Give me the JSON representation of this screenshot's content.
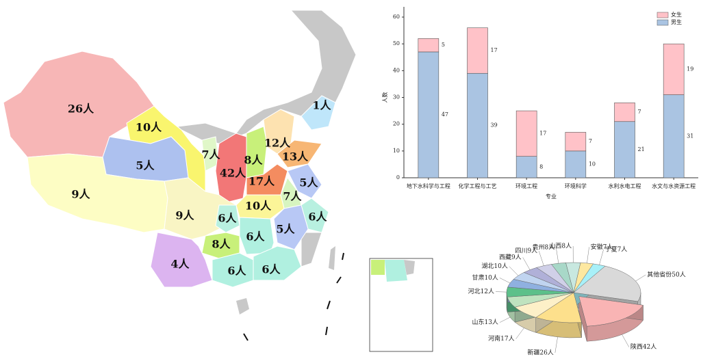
{
  "chart_data": [
    {
      "type": "map",
      "values": [
        26,
        10,
        5,
        9,
        9,
        4,
        7,
        42,
        8,
        12,
        13,
        1,
        17,
        5,
        7,
        10,
        6,
        6,
        5,
        6,
        8,
        6,
        6
      ],
      "value_labels": [
        "26人",
        "10人",
        "5人",
        "9人",
        "9人",
        "4人",
        "7人",
        "42人",
        "8人",
        "12人",
        "13人",
        "1人",
        "17人",
        "5人",
        "7人",
        "10人",
        "6人",
        "6人",
        "5人",
        "6人",
        "8人",
        "6人",
        "6人"
      ],
      "colors": [
        "#f7b6b6",
        "#f9f56e",
        "#adc1ef",
        "#fdfdc4",
        "#f9f5c4",
        "#dcb4f0",
        "#e0f7c8",
        "#f27777",
        "#c8f07a",
        "#fde2b0",
        "#f7b674",
        "#bfe6fa",
        "#f48c60",
        "#b8c8f5",
        "#d7f5c0",
        "#fbf598",
        "#b8f0e0",
        "#b8f0e0",
        "#b8c8f5",
        "#b0f0e0",
        "#c8f07a",
        "#b0f0e0",
        "#b0f0e0"
      ]
    },
    {
      "type": "bar",
      "categories": [
        "地下水科学与工程",
        "化学工程与工艺",
        "环境工程",
        "环境科学",
        "水利水电工程",
        "水文与水资源工程"
      ],
      "series": [
        {
          "name": "男生",
          "color": "#aac4e2",
          "values": [
            47,
            39,
            8,
            10,
            21,
            31
          ]
        },
        {
          "name": "女生",
          "color": "#ffc2c8",
          "values": [
            5,
            17,
            17,
            7,
            7,
            19
          ]
        }
      ],
      "xlabel": "专业",
      "ylabel": "人数",
      "ylim": [
        0,
        60
      ],
      "yticks": [
        0,
        10,
        20,
        30,
        40,
        50,
        60
      ],
      "stacked": true,
      "legend": "upper right"
    },
    {
      "type": "pie",
      "values": [
        50,
        42,
        26,
        17,
        13,
        12,
        10,
        10,
        9,
        9,
        8,
        8,
        7,
        7
      ],
      "value_labels": [
        "其他省份50人",
        "陕西42人",
        "新疆26人",
        "河南17人",
        "山东13人",
        "河北12人",
        "甘肃10人",
        "湖北10人",
        "西藏9人",
        "四川9人",
        "贵州8人",
        "山西8人",
        "安徽7人",
        "宁夏7人"
      ],
      "colors": [
        "#d9d9d9",
        "#f9b4b4",
        "#fde08c",
        "#fdf0c8",
        "#bfe3bf",
        "#5cc08a",
        "#8fb0e0",
        "#c0d4f0",
        "#b0b0d8",
        "#d0d0e8",
        "#a8d8c8",
        "#c8e8e0",
        "#fde8a0",
        "#a8f0f8"
      ],
      "explode": [
        0,
        1,
        0,
        0,
        0,
        0,
        0,
        0,
        0,
        0,
        0,
        0,
        0,
        0
      ]
    }
  ]
}
